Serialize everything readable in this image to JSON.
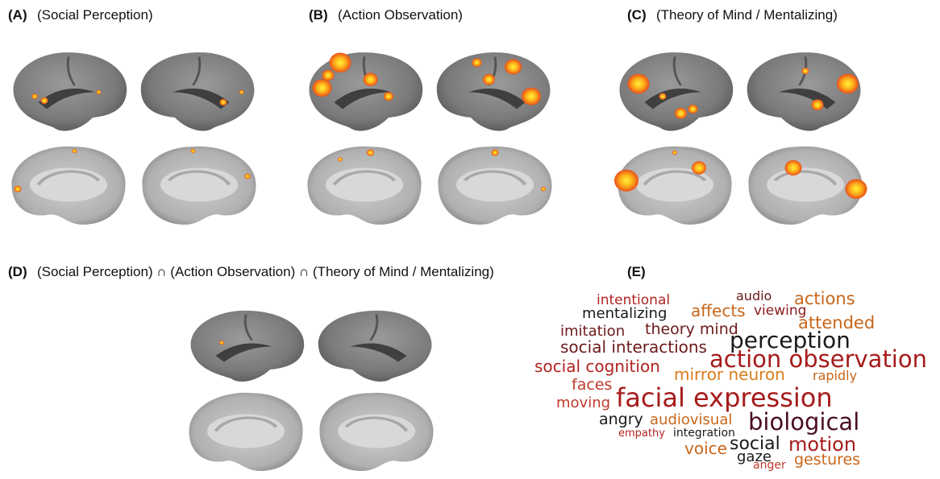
{
  "panels": [
    {
      "label": "(A)",
      "title": "(Social Perception)"
    },
    {
      "label": "(B)",
      "title": "(Action Observation)"
    },
    {
      "label": "(C)",
      "title": "(Theory of Mind / Mentalizing)"
    },
    {
      "label": "(D)",
      "title": "(Social Perception) ∩ (Action Observation) ∩ (Theory of Mind / Mentalizing)"
    },
    {
      "label": "(E)"
    }
  ],
  "word_cloud": {
    "words": [
      "intentional",
      "audio",
      "actions",
      "mentalizing",
      "affects",
      "viewing",
      "attended",
      "imitation",
      "theory mind",
      "perception",
      "social interactions",
      "action observation",
      "social cognition",
      "mirror neuron",
      "rapidly",
      "faces",
      "moving",
      "facial expression",
      "angry",
      "audiovisual",
      "biological",
      "empathy",
      "integration",
      "social",
      "motion",
      "voice",
      "gaze",
      "anger",
      "gestures"
    ]
  }
}
